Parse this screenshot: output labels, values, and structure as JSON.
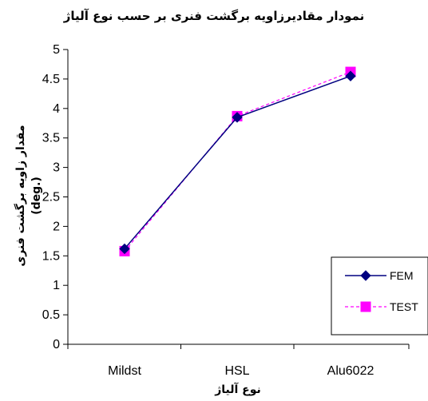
{
  "chart_data": {
    "type": "line",
    "title": "نمودار مقادیرزاویه برگشت فنری بر حسب نوع آلیاژ",
    "xlabel": "نوع آلیاژ",
    "ylabel_line1": "مقدار زاویه برگشت فنری",
    "ylabel_line2": "(deg.)",
    "categories": [
      "Mildst",
      "HSL",
      "Alu6022"
    ],
    "ylim": [
      0,
      5
    ],
    "y_ticks": [
      0,
      0.5,
      1,
      1.5,
      2,
      2.5,
      3,
      3.5,
      4,
      4.5,
      5
    ],
    "grid": false,
    "legend_position": "right",
    "series": [
      {
        "name": "FEM",
        "values": [
          1.62,
          3.85,
          4.55
        ],
        "color": "#000080",
        "marker": "diamond",
        "line": "solid"
      },
      {
        "name": "TEST",
        "values": [
          1.58,
          3.87,
          4.62
        ],
        "color": "#FF00FF",
        "marker": "square",
        "line": "dashed"
      }
    ]
  }
}
